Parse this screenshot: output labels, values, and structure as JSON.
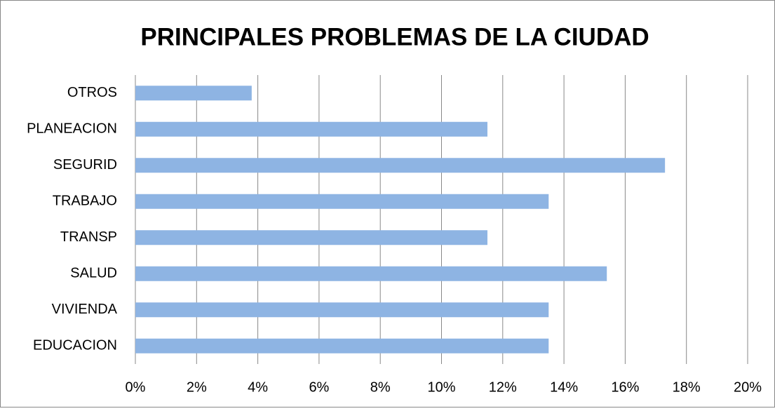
{
  "chart_data": {
    "type": "barh",
    "title": "PRINCIPALES PROBLEMAS DE LA CIUDAD",
    "categories": [
      "EDUCACION",
      "VIVIENDA",
      "SALUD",
      "TRANSP",
      "TRABAJO",
      "SEGURID",
      "PLANEACION",
      "OTROS"
    ],
    "values": [
      13.5,
      13.5,
      15.4,
      11.5,
      13.5,
      17.3,
      11.5,
      3.8
    ],
    "color": "#8eb4e3",
    "xlim": [
      0,
      20
    ],
    "xticks": [
      {
        "value": 0,
        "label": "0%"
      },
      {
        "value": 2,
        "label": "2%"
      },
      {
        "value": 4,
        "label": "4%"
      },
      {
        "value": 6,
        "label": "6%"
      },
      {
        "value": 8,
        "label": "8%"
      },
      {
        "value": 10,
        "label": "10%"
      },
      {
        "value": 12,
        "label": "12%"
      },
      {
        "value": 14,
        "label": "14%"
      },
      {
        "value": 16,
        "label": "16%"
      },
      {
        "value": 18,
        "label": "18%"
      },
      {
        "value": 20,
        "label": "20%"
      }
    ],
    "grid": true
  }
}
